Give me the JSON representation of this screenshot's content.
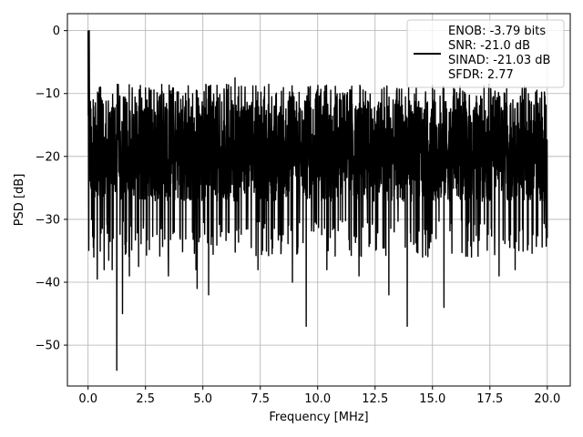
{
  "chart_data": {
    "type": "line",
    "xlabel": "Frequency [MHz]",
    "ylabel": "PSD [dB]",
    "xlim": [
      -0.9,
      21.0
    ],
    "ylim": [
      -56.5,
      2.7
    ],
    "x_ticks": [
      0.0,
      2.5,
      5.0,
      7.5,
      10.0,
      12.5,
      15.0,
      17.5,
      20.0
    ],
    "x_tick_labels": [
      "0.0",
      "2.5",
      "5.0",
      "7.5",
      "10.0",
      "12.5",
      "15.0",
      "17.5",
      "20.0"
    ],
    "y_ticks": [
      0,
      -10,
      -20,
      -30,
      -40,
      -50
    ],
    "y_tick_labels": [
      "0",
      "−10",
      "−20",
      "−30",
      "−40",
      "−50"
    ],
    "grid": true,
    "legend_position": "top-right",
    "line_color": "#000000",
    "series": [
      {
        "legend_lines": [
          "ENOB: -3.79 bits",
          "SNR: -21.0 dB",
          "SINAD: -21.03 dB",
          "SFDR: 2.77"
        ],
        "x_range": [
          0.0,
          20.0
        ],
        "peak": {
          "x": 0.0,
          "y": 0.0
        },
        "typical_band": [
          -30,
          -11
        ],
        "notable_points": [
          {
            "x": 0.05,
            "y": 0.0
          },
          {
            "x": 0.25,
            "y": -36
          },
          {
            "x": 0.4,
            "y": -39.5
          },
          {
            "x": 0.7,
            "y": -38
          },
          {
            "x": 0.9,
            "y": -36.5
          },
          {
            "x": 1.05,
            "y": -38
          },
          {
            "x": 1.25,
            "y": -54
          },
          {
            "x": 1.5,
            "y": -45
          },
          {
            "x": 1.8,
            "y": -39
          },
          {
            "x": 2.2,
            "y": -37.5
          },
          {
            "x": 3.5,
            "y": -39
          },
          {
            "x": 4.7,
            "y": -38
          },
          {
            "x": 4.75,
            "y": -41
          },
          {
            "x": 5.25,
            "y": -42
          },
          {
            "x": 6.4,
            "y": -7.5
          },
          {
            "x": 7.4,
            "y": -38
          },
          {
            "x": 8.9,
            "y": -40
          },
          {
            "x": 9.5,
            "y": -47
          },
          {
            "x": 10.4,
            "y": -38
          },
          {
            "x": 11.8,
            "y": -39
          },
          {
            "x": 13.1,
            "y": -42
          },
          {
            "x": 13.9,
            "y": -47
          },
          {
            "x": 15.5,
            "y": -44
          },
          {
            "x": 16.7,
            "y": -36
          },
          {
            "x": 17.9,
            "y": -39
          },
          {
            "x": 18.6,
            "y": -38
          }
        ]
      }
    ]
  }
}
